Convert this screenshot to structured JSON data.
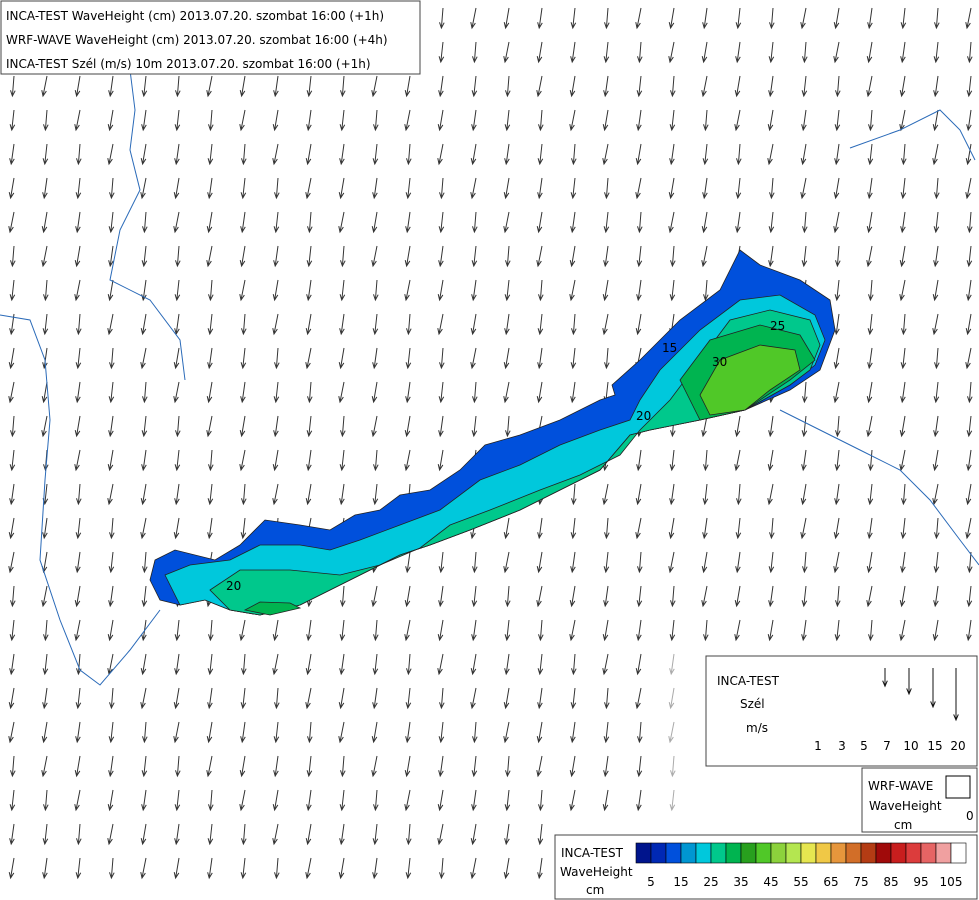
{
  "header": {
    "lines": [
      "INCA-TEST WaveHeight (cm) 2013.07.20. szombat 16:00 (+1h)",
      "WRF-WAVE WaveHeight (cm) 2013.07.20. szombat 16:00 (+4h)",
      "INCA-TEST Szél (m/s) 10m 2013.07.20. szombat 16:00 (+1h)"
    ]
  },
  "wind_legend": {
    "source": "INCA-TEST",
    "variable": "Szél",
    "unit": "m/s",
    "speeds": [
      1,
      3,
      5,
      7,
      10,
      15,
      20
    ]
  },
  "wrf_legend": {
    "source": "WRF-WAVE",
    "variable": "WaveHeight",
    "unit": "cm",
    "value": 0
  },
  "colorbar": {
    "source": "INCA-TEST",
    "variable": "WaveHeight",
    "unit": "cm",
    "colors": [
      "#00148c",
      "#0028b4",
      "#0050dc",
      "#0096d2",
      "#00c8dc",
      "#00c88c",
      "#00b450",
      "#28a01e",
      "#50c828",
      "#8cd23c",
      "#b4e650",
      "#e6e650",
      "#f0c846",
      "#e6963c",
      "#d26e28",
      "#b43c14",
      "#a00a0a",
      "#c81e1e",
      "#dc3c3c",
      "#e66464",
      "#f0a0a0",
      "#ffffff"
    ],
    "labels": [
      5,
      15,
      25,
      35,
      45,
      55,
      65,
      75,
      85,
      95,
      105
    ]
  },
  "contour_labels": [
    "15",
    "25",
    "30",
    "20",
    "20"
  ]
}
